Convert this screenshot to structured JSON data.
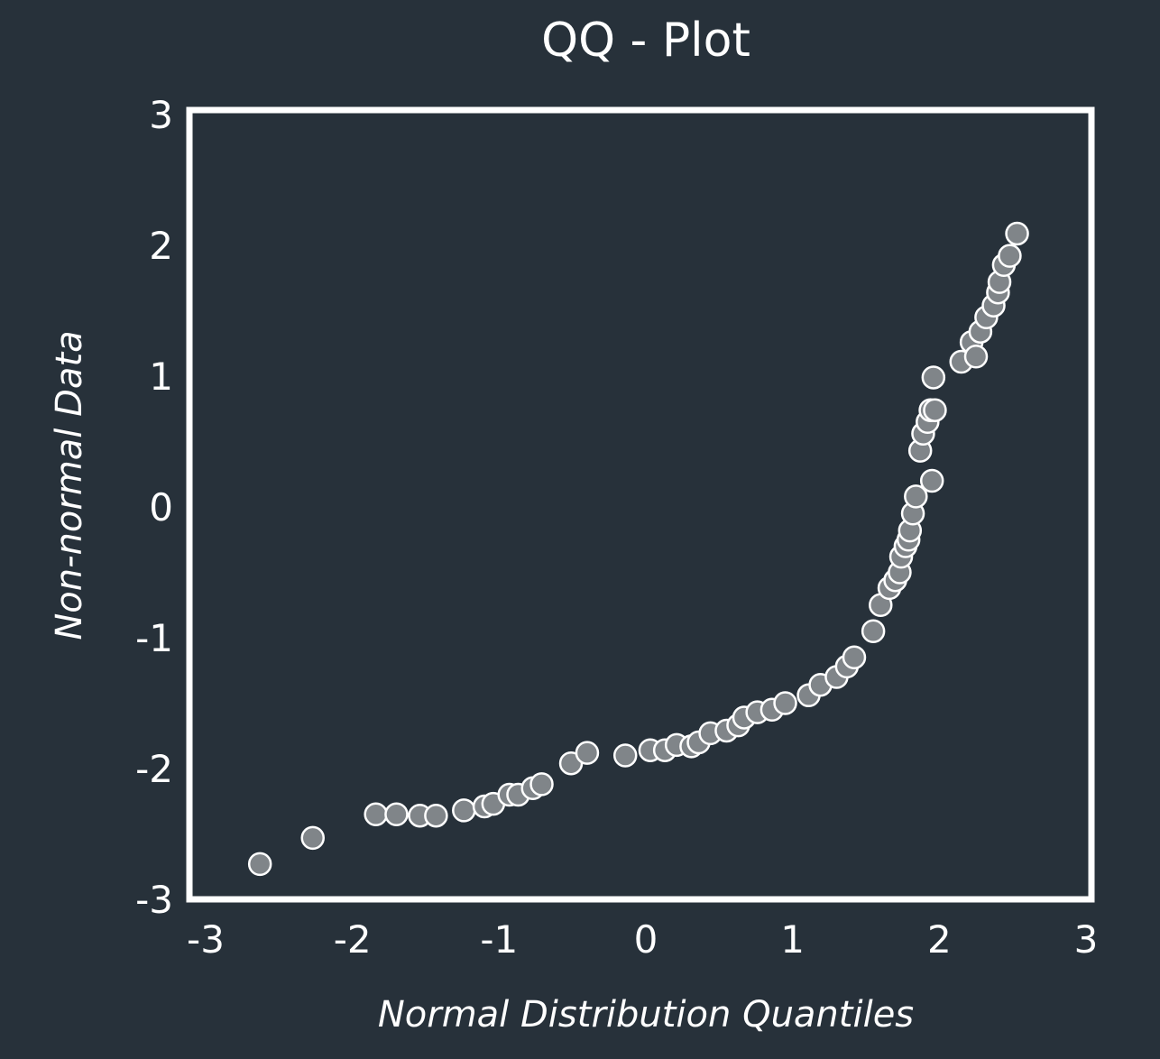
{
  "colors": {
    "background": "#27313a",
    "frame": "#ffffff",
    "text": "#ffffff",
    "marker_fill": "#808589",
    "marker_edge": "#ffffff"
  },
  "chart_data": {
    "type": "scatter",
    "title": "QQ - Plot",
    "xlabel": "Normal Distribution Quantiles",
    "ylabel": "Non-normal Data",
    "xlim": [
      -3,
      3
    ],
    "ylim": [
      -3,
      3
    ],
    "grid": false,
    "xticks": [
      "-3",
      "-2",
      "-1",
      "0",
      "1",
      "2",
      "3"
    ],
    "yticks": [
      "-3",
      "-2",
      "-1",
      "0",
      "1",
      "2",
      "3"
    ],
    "x": [
      -2.63,
      -2.27,
      -1.84,
      -1.7,
      -1.54,
      -1.43,
      -1.24,
      -1.1,
      -1.04,
      -0.93,
      -0.87,
      -0.77,
      -0.71,
      -0.51,
      -0.4,
      -0.14,
      0.03,
      0.13,
      0.21,
      0.31,
      0.36,
      0.44,
      0.55,
      0.63,
      0.67,
      0.76,
      0.86,
      0.95,
      1.11,
      1.19,
      1.3,
      1.37,
      1.42,
      1.55,
      1.6,
      1.66,
      1.7,
      1.73,
      1.74,
      1.77,
      1.79,
      1.8,
      1.82,
      1.84,
      1.87,
      1.89,
      1.92,
      1.94,
      1.95,
      1.96,
      1.97,
      2.15,
      2.22,
      2.25,
      2.28,
      2.32,
      2.37,
      2.4,
      2.41,
      2.44,
      2.48,
      2.53
    ],
    "y": [
      -2.73,
      -2.53,
      -2.35,
      -2.35,
      -2.36,
      -2.36,
      -2.32,
      -2.29,
      -2.27,
      -2.2,
      -2.2,
      -2.15,
      -2.12,
      -1.96,
      -1.88,
      -1.9,
      -1.86,
      -1.86,
      -1.82,
      -1.83,
      -1.8,
      -1.73,
      -1.71,
      -1.67,
      -1.61,
      -1.57,
      -1.55,
      -1.5,
      -1.44,
      -1.36,
      -1.3,
      -1.22,
      -1.15,
      -0.95,
      -0.75,
      -0.62,
      -0.56,
      -0.5,
      -0.38,
      -0.3,
      -0.25,
      -0.18,
      -0.05,
      0.08,
      0.43,
      0.56,
      0.65,
      0.74,
      0.2,
      0.99,
      0.74,
      1.11,
      1.26,
      1.15,
      1.34,
      1.45,
      1.54,
      1.64,
      1.72,
      1.85,
      1.92,
      2.09
    ]
  }
}
